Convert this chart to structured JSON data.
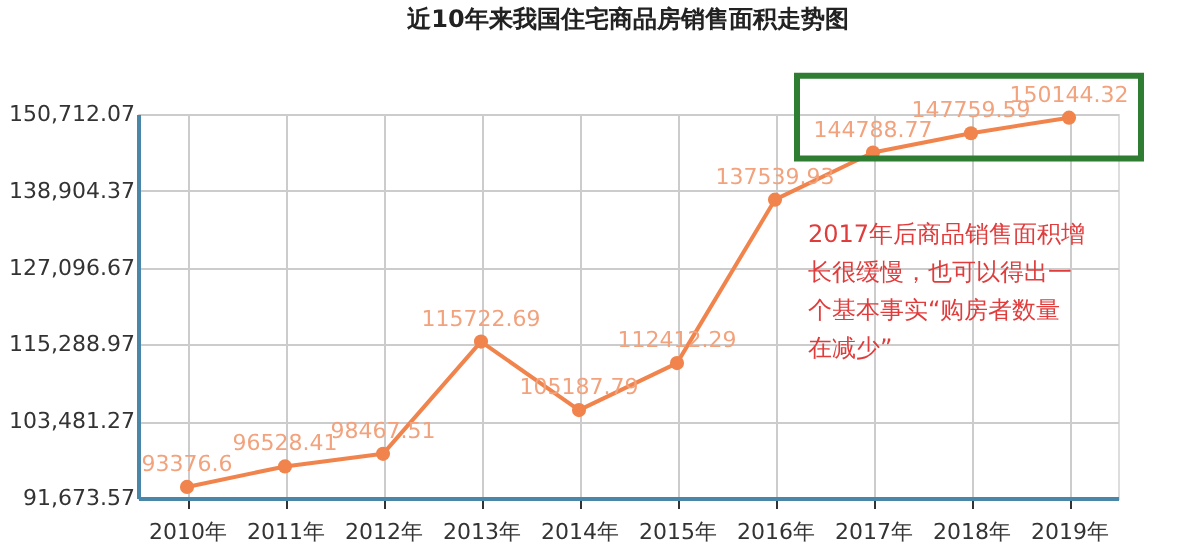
{
  "chart_data": {
    "type": "line",
    "title": "近10年来我国住宅商品房销售面积走势图",
    "categories": [
      "2010年",
      "2011年",
      "2012年",
      "2013年",
      "2014年",
      "2015年",
      "2016年",
      "2017年",
      "2018年",
      "2019年"
    ],
    "series": [
      {
        "color": "#f0844c",
        "values": [
          93376.6,
          96528.41,
          98467.51,
          115722.69,
          105187.79,
          112412.29,
          137539.93,
          144788.77,
          147759.59,
          150144.32
        ]
      }
    ],
    "ylim": [
      91673.57,
      150712.07
    ],
    "yticks": [
      {
        "value": 91673.57,
        "label": "91,673.57"
      },
      {
        "value": 103481.27,
        "label": "103,481.27"
      },
      {
        "value": 115288.97,
        "label": "115,288.97"
      },
      {
        "value": 127096.67,
        "label": "127,096.67"
      },
      {
        "value": 138904.37,
        "label": "138,904.37"
      },
      {
        "value": 150712.07,
        "label": "150,712.07"
      }
    ],
    "grid": true,
    "marker": "circle",
    "line_style": "solid",
    "data_labels": true,
    "annotations": [
      "2017年后商品销售面积增长很缓慢，也可以得出一个基本事实“购房者数量在减少”"
    ]
  }
}
